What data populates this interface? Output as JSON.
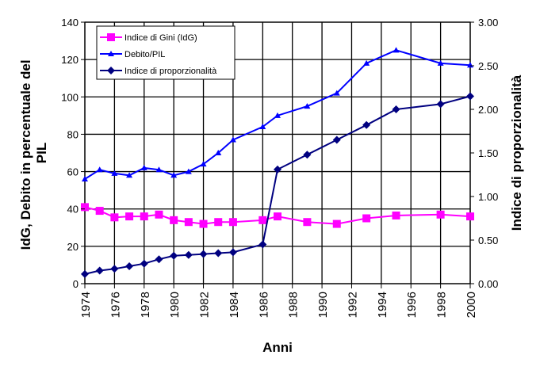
{
  "chart_data": {
    "type": "line",
    "title": "",
    "xlabel": "Anni",
    "ylabel": "IdG, Debito in percentuale del PIL",
    "ylabel_right": "Indice di proporzionalità",
    "xlim": [
      1974,
      2000
    ],
    "ylim": [
      0,
      140
    ],
    "ylim_right": [
      0,
      3
    ],
    "grid": true,
    "legend_position": "top-left",
    "x_ticks": [
      "1974",
      "1976",
      "1978",
      "1980",
      "1982",
      "1984",
      "1986",
      "1988",
      "1990",
      "1992",
      "1994",
      "1996",
      "1998",
      "2000"
    ],
    "y_ticks": [
      "0",
      "20",
      "40",
      "60",
      "80",
      "100",
      "120",
      "140"
    ],
    "y_ticks_right": [
      "0.00",
      "0.50",
      "1.00",
      "1.50",
      "2.00",
      "2.50",
      "3.00"
    ],
    "x": [
      1974,
      1975,
      1976,
      1977,
      1978,
      1979,
      1980,
      1981,
      1982,
      1983,
      1984,
      1986,
      1987,
      1989,
      1991,
      1993,
      1995,
      1998,
      2000
    ],
    "series": [
      {
        "name": "Indice di Gini (IdG)",
        "axis": "left",
        "color": "#ff00ff",
        "marker": "square",
        "values": [
          41,
          39,
          35.5,
          36,
          36,
          37,
          34,
          33,
          32,
          33,
          33,
          34,
          36,
          33,
          32,
          35,
          36.5,
          37,
          36
        ]
      },
      {
        "name": "Debito/PIL",
        "axis": "left",
        "color": "#0000ff",
        "marker": "triangle",
        "values": [
          56,
          61,
          59,
          58,
          62,
          61,
          58,
          60,
          64,
          70,
          77,
          84,
          90,
          95,
          102,
          118,
          125,
          118,
          117
        ]
      },
      {
        "name": "Indice di proporzionalità",
        "axis": "right",
        "color": "#000080",
        "marker": "diamond",
        "values": [
          0.11,
          0.15,
          0.17,
          0.2,
          0.23,
          0.28,
          0.32,
          0.33,
          0.34,
          0.35,
          0.36,
          0.45,
          1.31,
          1.48,
          1.65,
          1.82,
          2.0,
          2.06,
          2.15
        ]
      }
    ]
  }
}
